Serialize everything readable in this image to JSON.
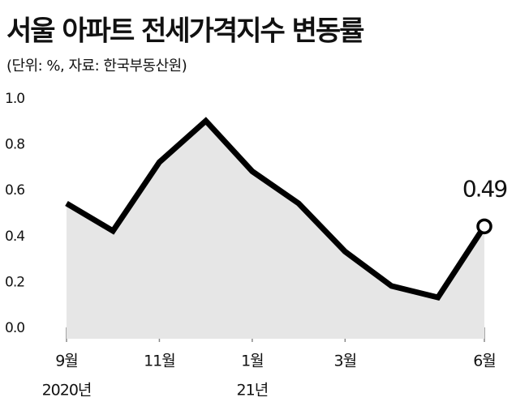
{
  "chart_data": {
    "type": "line",
    "title": "서울 아파트 전세가격지수 변동률",
    "subtitle": "(단위: %, 자료: 한국부동산원)",
    "categories": [
      "9월",
      null,
      "11월",
      null,
      "1월",
      null,
      "3월",
      null,
      null,
      "6월"
    ],
    "year_labels": [
      "2020년",
      null,
      null,
      null,
      "21년",
      null,
      null,
      null,
      null,
      null
    ],
    "series": [
      {
        "name": "전세가격지수 변동률",
        "color": "#000000",
        "area_color": "#e6e6e6",
        "values": [
          0.59,
          0.47,
          0.77,
          0.95,
          0.73,
          0.59,
          0.38,
          0.23,
          0.18,
          0.49
        ],
        "value_labels": [
          null,
          null,
          null,
          null,
          null,
          null,
          null,
          null,
          null,
          "0.49"
        ]
      }
    ],
    "ylim": [
      0,
      1.0
    ],
    "yticks": [
      {
        "value": 0,
        "label": "0.0"
      },
      0.2,
      0.4,
      0.6,
      0.8,
      {
        "value": 1.0,
        "label": "1.0"
      }
    ],
    "grid": false
  }
}
